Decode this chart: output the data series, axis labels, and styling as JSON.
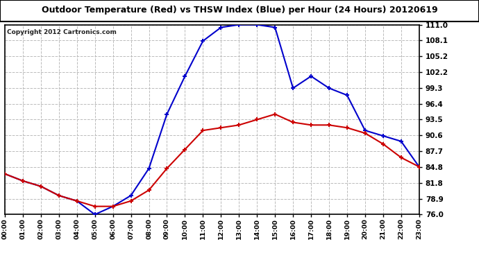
{
  "title": "Outdoor Temperature (Red) vs THSW Index (Blue) per Hour (24 Hours) 20120619",
  "copyright": "Copyright 2012 Cartronics.com",
  "hours": [
    "00:00",
    "01:00",
    "02:00",
    "03:00",
    "04:00",
    "05:00",
    "06:00",
    "07:00",
    "08:00",
    "09:00",
    "10:00",
    "11:00",
    "12:00",
    "13:00",
    "14:00",
    "15:00",
    "16:00",
    "17:00",
    "18:00",
    "19:00",
    "20:00",
    "21:00",
    "22:00",
    "23:00"
  ],
  "temp_red": [
    83.5,
    82.2,
    81.2,
    79.5,
    78.5,
    77.5,
    77.5,
    78.5,
    80.5,
    84.5,
    88.0,
    91.5,
    92.0,
    92.5,
    93.5,
    94.5,
    93.0,
    92.5,
    92.5,
    92.0,
    91.0,
    89.0,
    86.5,
    84.8
  ],
  "thsw_blue": [
    83.5,
    82.2,
    81.2,
    79.5,
    78.5,
    76.0,
    77.5,
    79.5,
    84.5,
    94.5,
    101.5,
    108.0,
    110.5,
    111.0,
    111.0,
    110.5,
    99.3,
    101.5,
    99.3,
    98.0,
    91.5,
    90.5,
    89.5,
    84.8
  ],
  "ylim": [
    76.0,
    111.0
  ],
  "yticks": [
    76.0,
    78.9,
    81.8,
    84.8,
    87.7,
    90.6,
    93.5,
    96.4,
    99.3,
    102.2,
    105.2,
    108.1,
    111.0
  ],
  "bg_color": "#ffffff",
  "grid_color": "#bbbbbb",
  "red_color": "#cc0000",
  "blue_color": "#0000cc",
  "title_fg": "#000000",
  "inner_bg": "#ffffff"
}
